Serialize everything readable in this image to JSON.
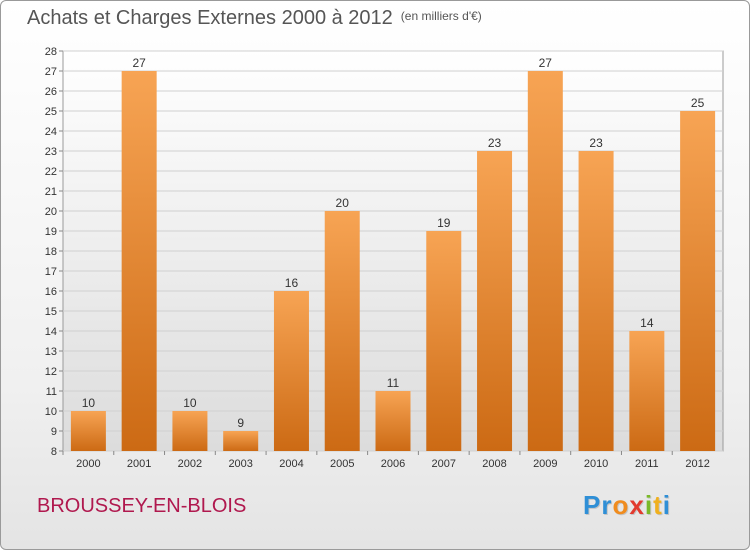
{
  "header": {
    "title": "Achats et Charges Externes 2000 à 2012",
    "subtitle": "(en milliers d'€)"
  },
  "footer": {
    "town": "BROUSSEY-EN-BLOIS",
    "logo_text": "Proxiti"
  },
  "colors": {
    "bar_light": "#f7a454",
    "bar_dark": "#cc6a14",
    "town": "#b0184e"
  },
  "chart_data": {
    "type": "bar",
    "title": "Achats et Charges Externes 2000 à 2012",
    "subtitle": "(en milliers d'€)",
    "xlabel": "",
    "ylabel": "",
    "categories": [
      "2000",
      "2001",
      "2002",
      "2003",
      "2004",
      "2005",
      "2006",
      "2007",
      "2008",
      "2009",
      "2010",
      "2011",
      "2012"
    ],
    "values": [
      10,
      27,
      10,
      9,
      16,
      20,
      11,
      19,
      23,
      27,
      23,
      14,
      25
    ],
    "ylim": [
      8,
      28
    ],
    "yticks": [
      8,
      9,
      10,
      11,
      12,
      13,
      14,
      15,
      16,
      17,
      18,
      19,
      20,
      21,
      22,
      23,
      24,
      25,
      26,
      27,
      28
    ],
    "grid": true,
    "legend": "none"
  }
}
